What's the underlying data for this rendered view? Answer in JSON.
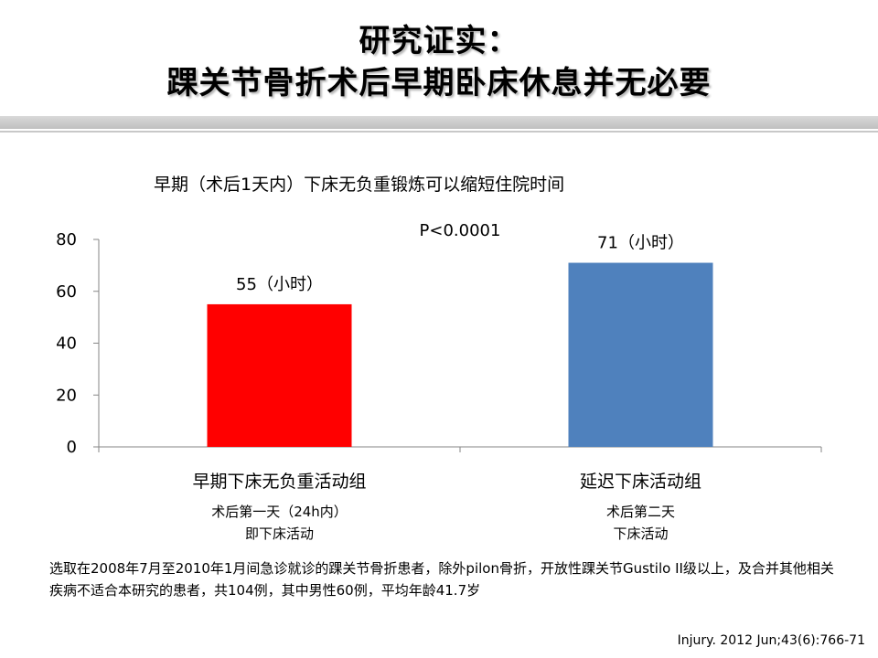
{
  "title": {
    "line1": "研究证实：",
    "line2": "踝关节骨折术后早期卧床休息并无必要"
  },
  "chart_data": {
    "type": "bar",
    "title": "早期（术后1天内）下床无负重锻炼可以缩短住院时间",
    "categories": [
      "早期下床无负重活动组",
      "延迟下床活动组"
    ],
    "category_notes": [
      [
        "术后第一天（24h内）",
        "即下床活动"
      ],
      [
        "术后第二天",
        "下床活动"
      ]
    ],
    "values": [
      55,
      71
    ],
    "value_labels": [
      "55（小时）",
      "71（小时）"
    ],
    "colors": [
      "#ff0000",
      "#4f81bd"
    ],
    "ylim": [
      0,
      80
    ],
    "yticks": [
      0,
      20,
      40,
      60,
      80
    ],
    "annotation": "P<0.0001",
    "xlabel": "",
    "ylabel": "",
    "grid": false
  },
  "footnote": "选取在2008年7月至2010年1月间急诊就诊的踝关节骨折患者，除外pilon骨折，开放性踝关节Gustilo II级以上，及合并其他相关疾病不适合本研究的患者，共104例，其中男性60例，平均年龄41.7岁",
  "citation": "Injury. 2012 Jun;43(6):766-71"
}
